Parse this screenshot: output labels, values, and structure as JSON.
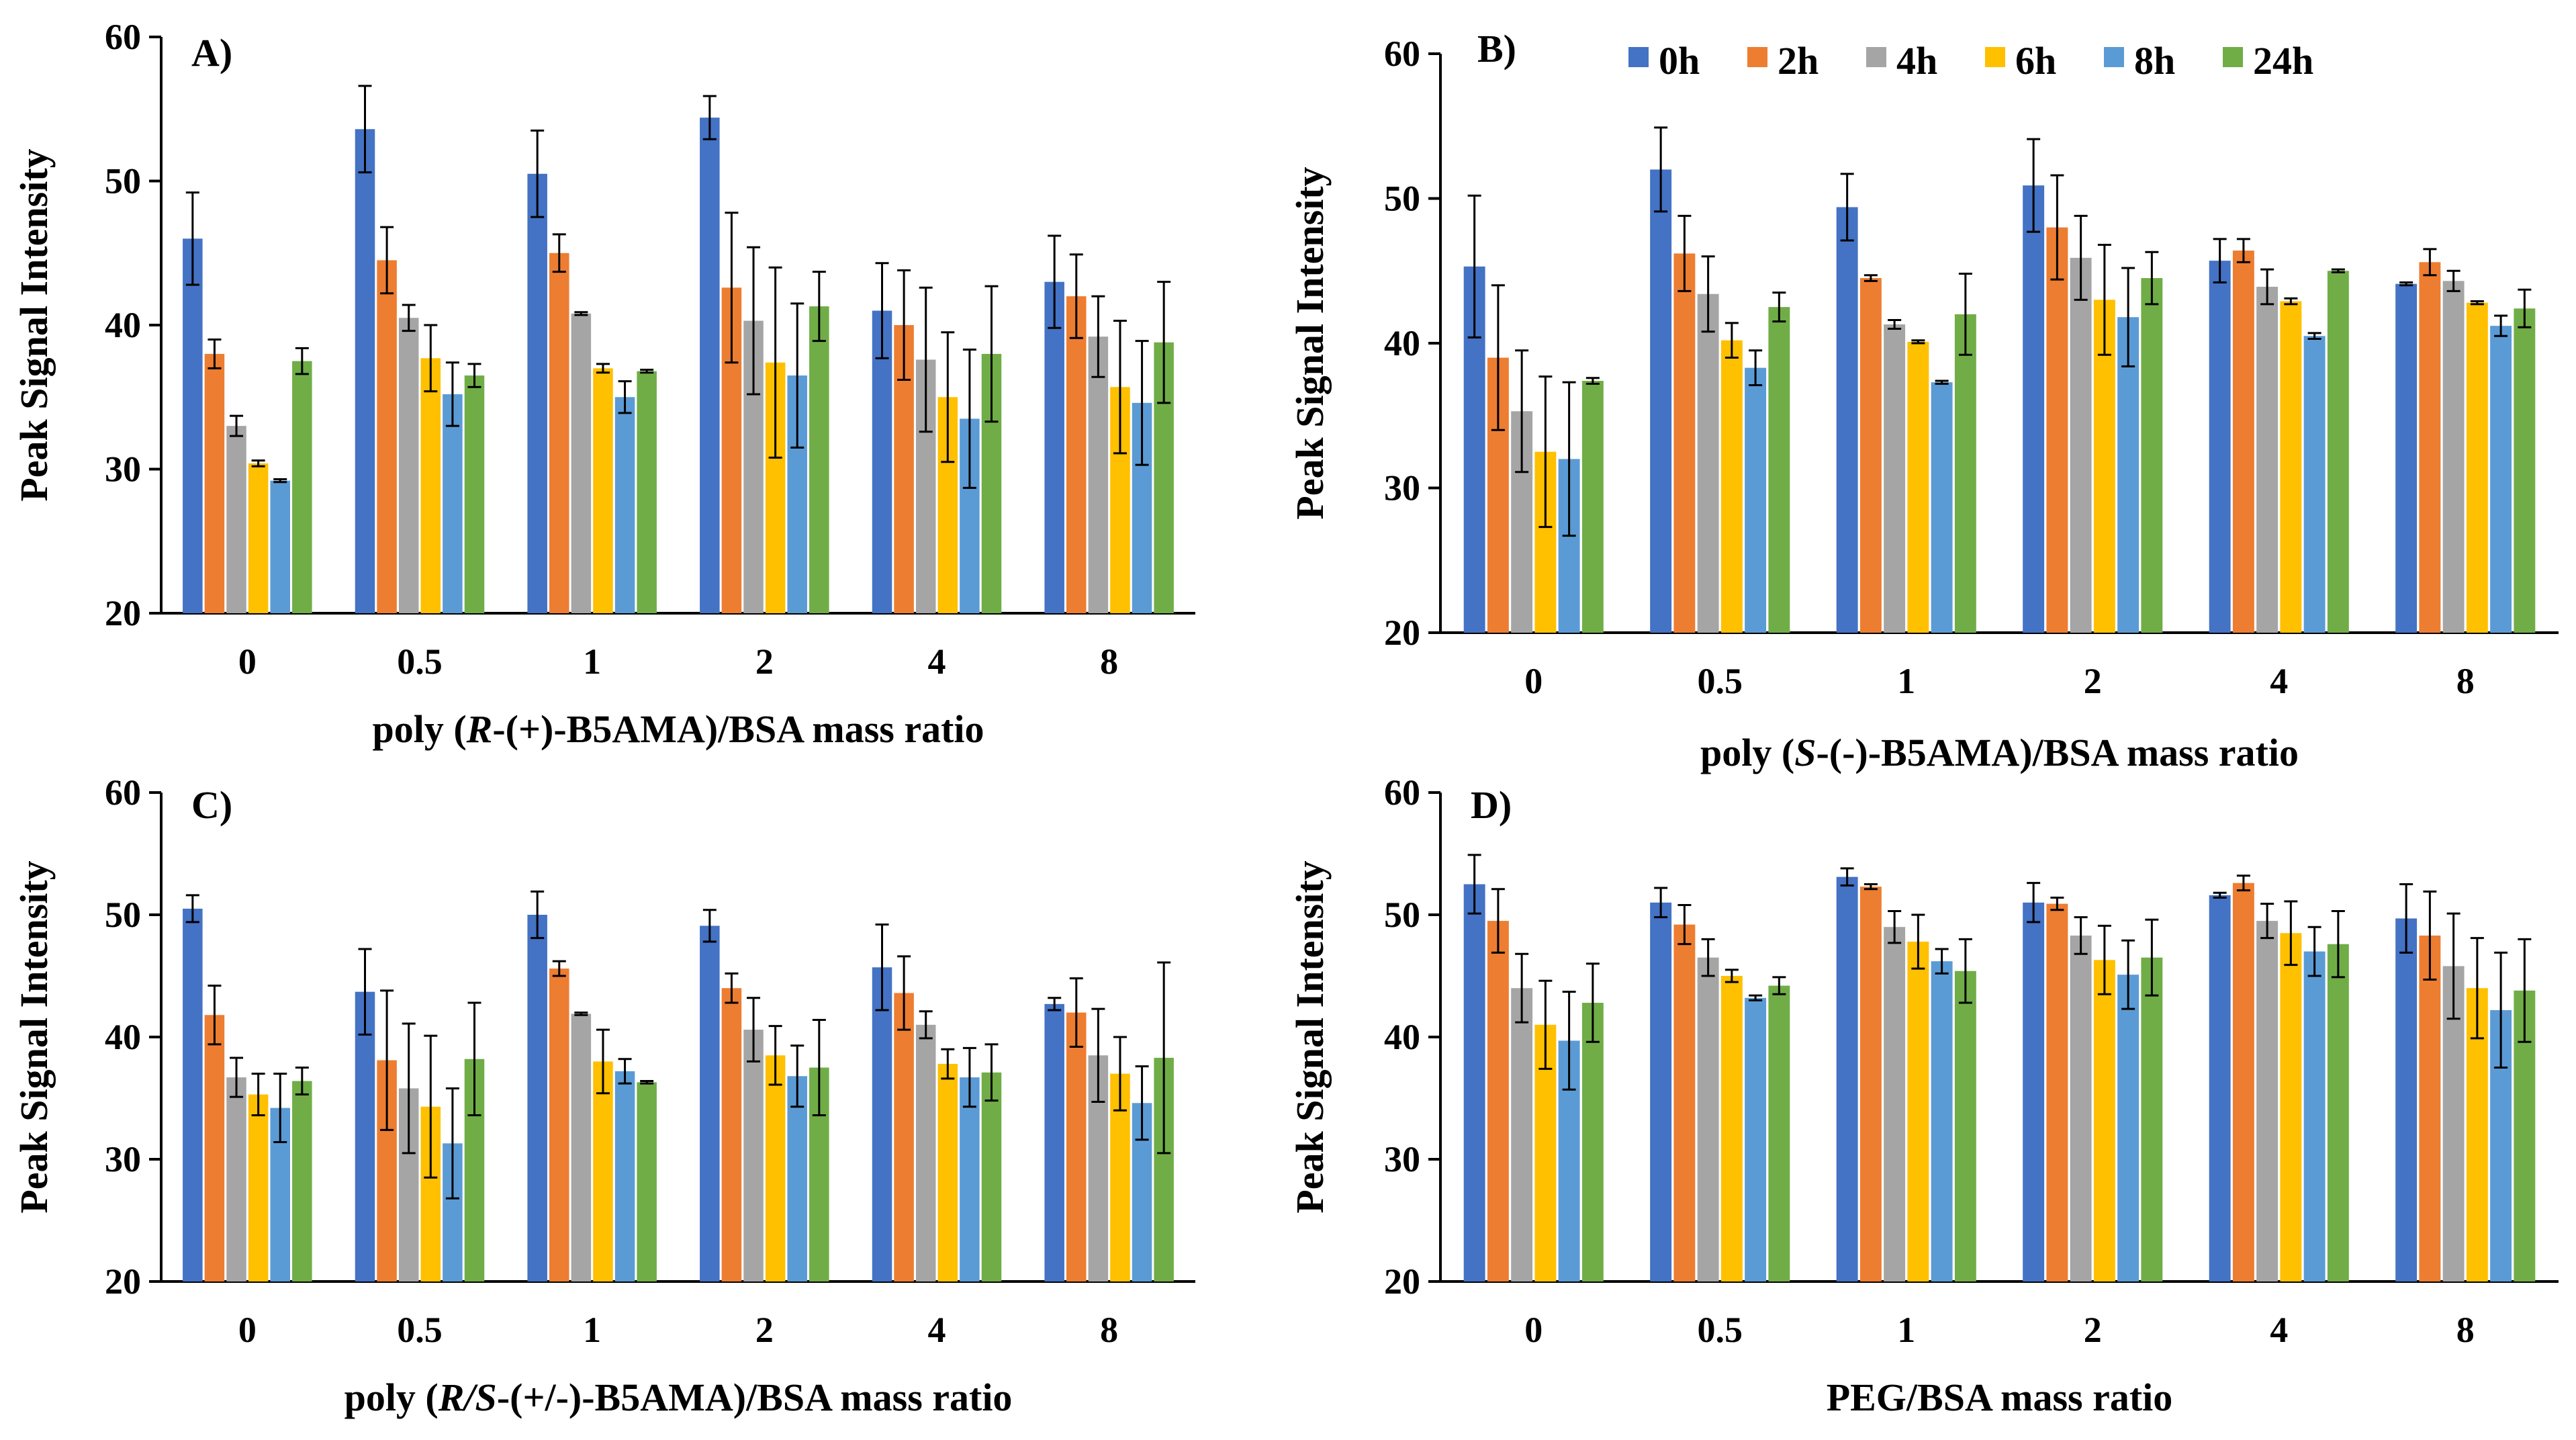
{
  "legend": {
    "entries": [
      "0h",
      "2h",
      "4h",
      "6h",
      "8h",
      "24h"
    ]
  },
  "colors": [
    "#4472C4",
    "#ED7D31",
    "#A5A5A5",
    "#FFC000",
    "#5B9BD5",
    "#70AD47"
  ],
  "chart_data": [
    {
      "type": "bar",
      "panel": "A)",
      "ylabel": "Peak Signal Intensity",
      "xlabel_parts": [
        "poly (",
        "R",
        "-(+)-B5AMA)/BSA mass ratio"
      ],
      "ylim": [
        20,
        60
      ],
      "yticks": [
        "20",
        "30",
        "40",
        "50",
        "60"
      ],
      "categories": [
        "0",
        "0.5",
        "1",
        "2",
        "4",
        "8"
      ],
      "series": [
        {
          "name": "0h",
          "values": [
            46.0,
            53.6,
            50.5,
            54.4,
            41.0,
            43.0
          ],
          "errors": [
            3.2,
            3.0,
            3.0,
            1.5,
            3.3,
            3.2
          ]
        },
        {
          "name": "2h",
          "values": [
            38.0,
            44.5,
            45.0,
            42.6,
            40.0,
            42.0
          ],
          "errors": [
            1.0,
            2.3,
            1.3,
            5.2,
            3.8,
            2.9
          ]
        },
        {
          "name": "4h",
          "values": [
            33.0,
            40.5,
            40.8,
            40.3,
            37.6,
            39.2
          ],
          "errors": [
            0.7,
            0.9,
            0.1,
            5.1,
            5.0,
            2.8
          ]
        },
        {
          "name": "6h",
          "values": [
            30.4,
            37.7,
            37.0,
            37.4,
            35.0,
            35.7
          ],
          "errors": [
            0.2,
            2.3,
            0.3,
            6.6,
            4.5,
            4.6
          ]
        },
        {
          "name": "8h",
          "values": [
            29.2,
            35.2,
            35.0,
            36.5,
            33.5,
            34.6
          ],
          "errors": [
            0.1,
            2.2,
            1.1,
            5.0,
            4.8,
            4.3
          ]
        },
        {
          "name": "24h",
          "values": [
            37.5,
            36.5,
            36.8,
            41.3,
            38.0,
            38.8
          ],
          "errors": [
            0.9,
            0.8,
            0.1,
            2.4,
            4.7,
            4.2
          ]
        }
      ]
    },
    {
      "type": "bar",
      "panel": "B)",
      "ylabel": "Peak Signal Intensity",
      "xlabel_parts": [
        "poly (",
        "S",
        "-(-)-B5AMA)/BSA mass ratio"
      ],
      "ylim": [
        20,
        60
      ],
      "yticks": [
        "20",
        "30",
        "40",
        "50",
        "60"
      ],
      "categories": [
        "0",
        "0.5",
        "1",
        "2",
        "4",
        "8"
      ],
      "series": [
        {
          "name": "0h",
          "values": [
            45.3,
            52.0,
            49.4,
            50.9,
            45.7,
            44.1
          ],
          "errors": [
            4.9,
            2.9,
            2.3,
            3.2,
            1.5,
            0.1
          ]
        },
        {
          "name": "2h",
          "values": [
            39.0,
            46.2,
            44.5,
            48.0,
            46.4,
            45.6
          ],
          "errors": [
            5.0,
            2.6,
            0.2,
            3.6,
            0.8,
            0.9
          ]
        },
        {
          "name": "4h",
          "values": [
            35.3,
            43.4,
            41.3,
            45.9,
            43.9,
            44.3
          ],
          "errors": [
            4.2,
            2.6,
            0.3,
            2.9,
            1.2,
            0.7
          ]
        },
        {
          "name": "6h",
          "values": [
            32.5,
            40.2,
            40.1,
            43.0,
            42.9,
            42.8
          ],
          "errors": [
            5.2,
            1.2,
            0.1,
            3.8,
            0.2,
            0.1
          ]
        },
        {
          "name": "8h",
          "values": [
            32.0,
            38.3,
            37.3,
            41.8,
            40.5,
            41.2
          ],
          "errors": [
            5.3,
            1.2,
            0.1,
            3.4,
            0.2,
            0.7
          ]
        },
        {
          "name": "24h",
          "values": [
            37.4,
            42.5,
            42.0,
            44.5,
            45.0,
            42.4
          ],
          "errors": [
            0.2,
            1.0,
            2.8,
            1.8,
            0.1,
            1.3
          ]
        }
      ]
    },
    {
      "type": "bar",
      "panel": "C)",
      "ylabel": "Peak Signal Intensity",
      "xlabel_parts": [
        "poly (",
        "R/S",
        "-(+/-)-B5AMA)/BSA mass ratio"
      ],
      "ylim": [
        20,
        60
      ],
      "yticks": [
        "20",
        "30",
        "40",
        "50",
        "60"
      ],
      "categories": [
        "0",
        "0.5",
        "1",
        "2",
        "4",
        "8"
      ],
      "series": [
        {
          "name": "0h",
          "values": [
            50.5,
            43.7,
            50.0,
            49.1,
            45.7,
            42.7
          ],
          "errors": [
            1.1,
            3.5,
            1.9,
            1.3,
            3.5,
            0.5
          ]
        },
        {
          "name": "2h",
          "values": [
            41.8,
            38.1,
            45.6,
            44.0,
            43.6,
            42.0
          ],
          "errors": [
            2.4,
            5.7,
            0.6,
            1.2,
            3.0,
            2.8
          ]
        },
        {
          "name": "4h",
          "values": [
            36.7,
            35.8,
            41.9,
            40.6,
            41.0,
            38.5
          ],
          "errors": [
            1.6,
            5.3,
            0.1,
            2.6,
            1.1,
            3.8
          ]
        },
        {
          "name": "6h",
          "values": [
            35.3,
            34.3,
            38.0,
            38.5,
            37.8,
            37.0
          ],
          "errors": [
            1.7,
            5.8,
            2.6,
            2.4,
            1.2,
            3.0
          ]
        },
        {
          "name": "8h",
          "values": [
            34.2,
            31.3,
            37.2,
            36.8,
            36.7,
            34.6
          ],
          "errors": [
            2.8,
            4.5,
            1.0,
            2.5,
            2.4,
            3.0
          ]
        },
        {
          "name": "24h",
          "values": [
            36.4,
            38.2,
            36.3,
            37.5,
            37.1,
            38.3
          ],
          "errors": [
            1.1,
            4.6,
            0.1,
            3.9,
            2.3,
            7.8
          ]
        }
      ]
    },
    {
      "type": "bar",
      "panel": "D)",
      "ylabel": "Peak Signal Intensity",
      "xlabel_parts": [
        "PEG/BSA mass ratio"
      ],
      "ylim": [
        20,
        60
      ],
      "yticks": [
        "20",
        "30",
        "40",
        "50",
        "60"
      ],
      "categories": [
        "0",
        "0.5",
        "1",
        "2",
        "4",
        "8"
      ],
      "series": [
        {
          "name": "0h",
          "values": [
            52.5,
            51.0,
            53.1,
            51.0,
            51.6,
            49.7
          ],
          "errors": [
            2.4,
            1.2,
            0.7,
            1.6,
            0.2,
            2.8
          ]
        },
        {
          "name": "2h",
          "values": [
            49.5,
            49.2,
            52.3,
            50.9,
            52.6,
            48.3
          ],
          "errors": [
            2.6,
            1.6,
            0.2,
            0.5,
            0.6,
            3.6
          ]
        },
        {
          "name": "4h",
          "values": [
            44.0,
            46.5,
            49.0,
            48.3,
            49.5,
            45.8
          ],
          "errors": [
            2.8,
            1.5,
            1.3,
            1.5,
            1.4,
            4.3
          ]
        },
        {
          "name": "6h",
          "values": [
            41.0,
            45.0,
            47.8,
            46.3,
            48.5,
            44.0
          ],
          "errors": [
            3.6,
            0.5,
            2.2,
            2.8,
            2.6,
            4.1
          ]
        },
        {
          "name": "8h",
          "values": [
            39.7,
            43.2,
            46.2,
            45.1,
            47.0,
            42.2
          ],
          "errors": [
            4.0,
            0.2,
            1.0,
            2.8,
            2.0,
            4.7
          ]
        },
        {
          "name": "24h",
          "values": [
            42.8,
            44.2,
            45.4,
            46.5,
            47.6,
            43.8
          ],
          "errors": [
            3.2,
            0.7,
            2.6,
            3.1,
            2.7,
            4.2
          ]
        }
      ]
    }
  ]
}
